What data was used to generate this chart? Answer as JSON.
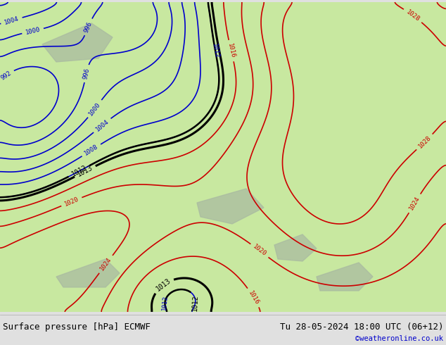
{
  "title_left": "Surface pressure [hPa] ECMWF",
  "title_right": "Tu 28-05-2024 18:00 UTC (06+12)",
  "credit": "©weatheronline.co.uk",
  "land_color": "#c8e8a0",
  "gray_color": "#a8b8a0",
  "bottom_bar_color": "#e0e0e0",
  "title_color": "#000000",
  "credit_color": "#0000cc",
  "label_fontsize": 6.5,
  "title_fontsize": 9,
  "figsize": [
    6.34,
    4.9
  ],
  "dpi": 100
}
